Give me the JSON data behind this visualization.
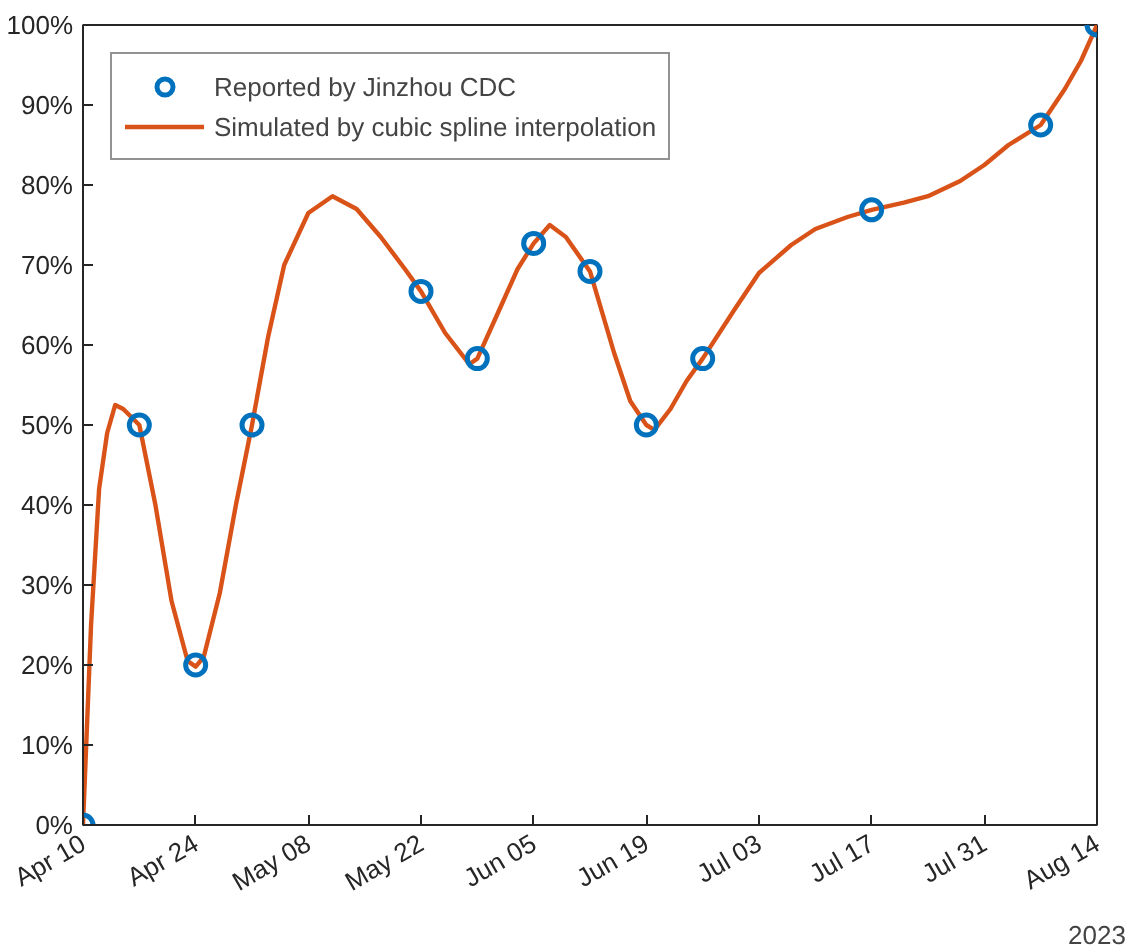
{
  "chart_data": {
    "type": "scatter",
    "xlabel": "2023",
    "xlim": [
      "2023-04-10",
      "2023-08-14"
    ],
    "xticks": [
      {
        "value": "2023-04-10",
        "label": "Apr 10"
      },
      {
        "value": "2023-04-24",
        "label": "Apr 24"
      },
      {
        "value": "2023-05-08",
        "label": "May 08"
      },
      {
        "value": "2023-05-22",
        "label": "May 22"
      },
      {
        "value": "2023-06-05",
        "label": "Jun 05"
      },
      {
        "value": "2023-06-19",
        "label": "Jun 19"
      },
      {
        "value": "2023-07-03",
        "label": "Jul 03"
      },
      {
        "value": "2023-07-17",
        "label": "Jul 17"
      },
      {
        "value": "2023-07-31",
        "label": "Jul 31"
      },
      {
        "value": "2023-08-14",
        "label": "Aug 14"
      }
    ],
    "ylim": [
      0,
      100
    ],
    "yticks": [
      {
        "value": 0,
        "label": "0%"
      },
      {
        "value": 10,
        "label": "10%"
      },
      {
        "value": 20,
        "label": "20%"
      },
      {
        "value": 30,
        "label": "30%"
      },
      {
        "value": 40,
        "label": "40%"
      },
      {
        "value": 50,
        "label": "50%"
      },
      {
        "value": 60,
        "label": "60%"
      },
      {
        "value": 70,
        "label": "70%"
      },
      {
        "value": 80,
        "label": "80%"
      },
      {
        "value": 90,
        "label": "90%"
      },
      {
        "value": 100,
        "label": "100%"
      }
    ],
    "grid": false,
    "legend": "top left",
    "series": [
      {
        "name": "Reported by Jinzhou CDC",
        "marker": "circle",
        "color": "#0072bd",
        "x": [
          "2023-04-10",
          "2023-04-17",
          "2023-04-24",
          "2023-05-01",
          "2023-05-22",
          "2023-05-29",
          "2023-06-05",
          "2023-06-12",
          "2023-06-19",
          "2023-06-26",
          "2023-07-17",
          "2023-08-07",
          "2023-08-14"
        ],
        "values": [
          0,
          50,
          20,
          50,
          66.7,
          58.3,
          72.7,
          69.2,
          50,
          58.3,
          76.9,
          87.5,
          100
        ]
      },
      {
        "name": "Simulated by cubic spline interpolation",
        "type": "line",
        "line_style": "solid",
        "color": "#d95319",
        "x": [
          "2023-04-10",
          "2023-04-11",
          "2023-04-12",
          "2023-04-13",
          "2023-04-14",
          "2023-04-15",
          "2023-04-17",
          "2023-04-19",
          "2023-04-21",
          "2023-04-23",
          "2023-04-24",
          "2023-04-25",
          "2023-04-27",
          "2023-04-29",
          "2023-05-01",
          "2023-05-03",
          "2023-05-05",
          "2023-05-08",
          "2023-05-11",
          "2023-05-14",
          "2023-05-17",
          "2023-05-20",
          "2023-05-22",
          "2023-05-25",
          "2023-05-28",
          "2023-05-29",
          "2023-06-01",
          "2023-06-03",
          "2023-06-05",
          "2023-06-07",
          "2023-06-09",
          "2023-06-12",
          "2023-06-15",
          "2023-06-17",
          "2023-06-19",
          "2023-06-20",
          "2023-06-22",
          "2023-06-24",
          "2023-06-26",
          "2023-06-30",
          "2023-07-03",
          "2023-07-07",
          "2023-07-10",
          "2023-07-14",
          "2023-07-17",
          "2023-07-21",
          "2023-07-24",
          "2023-07-28",
          "2023-07-31",
          "2023-08-03",
          "2023-08-07",
          "2023-08-10",
          "2023-08-12",
          "2023-08-14"
        ],
        "values": [
          0,
          25,
          42,
          49,
          52.5,
          52,
          50,
          40,
          28,
          20.5,
          19.8,
          21,
          29,
          40,
          50,
          61,
          70,
          76.5,
          78.6,
          77,
          73.5,
          69.5,
          66.7,
          61.5,
          57.6,
          58.3,
          65,
          69.5,
          72.7,
          75,
          73.5,
          69.2,
          59,
          53,
          50,
          49.4,
          52,
          55.5,
          58.3,
          64.5,
          69,
          72.5,
          74.5,
          76,
          76.9,
          77.8,
          78.6,
          80.5,
          82.5,
          85,
          87.5,
          92,
          95.5,
          100
        ]
      }
    ]
  }
}
